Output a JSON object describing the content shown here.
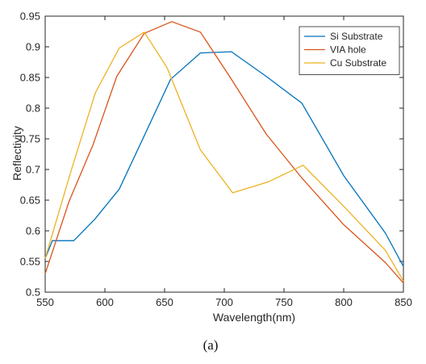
{
  "chart_data": {
    "type": "line",
    "xlabel": "Wavelength(nm)",
    "ylabel": "Reflectivity",
    "xlim": [
      550,
      850
    ],
    "ylim": [
      0.5,
      0.95
    ],
    "xticks": [
      550,
      600,
      650,
      700,
      750,
      800,
      850
    ],
    "yticks": [
      0.5,
      0.55,
      0.6,
      0.65,
      0.7,
      0.75,
      0.8,
      0.85,
      0.9,
      0.95
    ],
    "grid": false,
    "legend_position": "top-right",
    "series": [
      {
        "name": "Si Substrate",
        "color": "#0072BD",
        "x": [
          550,
          556,
          574,
          592,
          612,
          633,
          655,
          680,
          706,
          735,
          765,
          800,
          835,
          850
        ],
        "y": [
          0.555,
          0.584,
          0.584,
          0.62,
          0.668,
          0.755,
          0.847,
          0.89,
          0.892,
          0.852,
          0.808,
          0.69,
          0.596,
          0.542
        ]
      },
      {
        "name": "VIA hole",
        "color": "#D95319",
        "x": [
          550,
          570,
          590,
          610,
          633,
          656,
          680,
          705,
          735,
          765,
          800,
          835,
          850
        ],
        "y": [
          0.53,
          0.648,
          0.74,
          0.852,
          0.922,
          0.941,
          0.924,
          0.85,
          0.758,
          0.686,
          0.61,
          0.548,
          0.515
        ]
      },
      {
        "name": "Cu Substrate",
        "color": "#EDB120",
        "x": [
          550,
          572,
          592,
          612,
          633,
          652,
          680,
          707,
          737,
          766,
          800,
          835,
          850
        ],
        "y": [
          0.555,
          0.7,
          0.825,
          0.898,
          0.924,
          0.866,
          0.732,
          0.662,
          0.68,
          0.707,
          0.64,
          0.568,
          0.518
        ]
      }
    ]
  },
  "caption": "(a)"
}
